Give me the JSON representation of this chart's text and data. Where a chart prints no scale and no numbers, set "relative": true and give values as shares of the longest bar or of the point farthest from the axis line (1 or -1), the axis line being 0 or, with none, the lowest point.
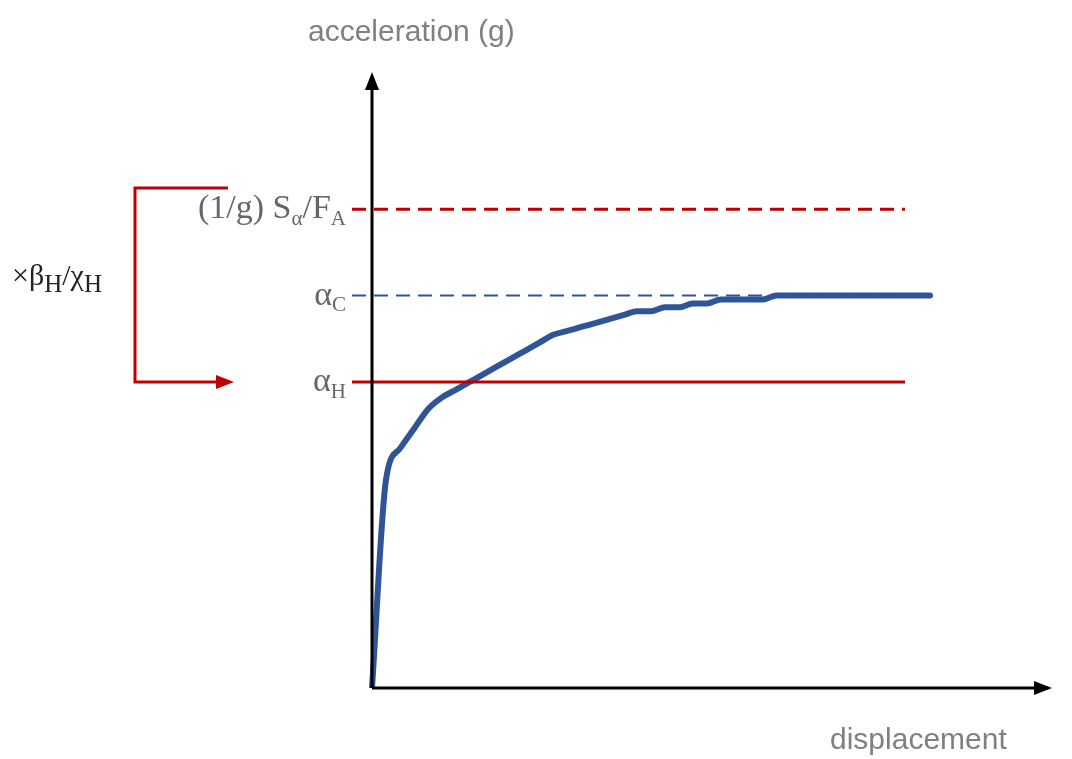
{
  "chart_data": {
    "type": "line",
    "relative": true,
    "xlabel": "displacement",
    "categories": [
      null,
      null,
      null,
      null,
      null,
      null,
      null,
      null,
      null,
      null,
      null,
      null,
      null,
      null,
      null,
      null,
      null,
      null,
      null,
      null,
      null,
      null,
      null,
      null,
      null,
      null,
      null,
      null,
      null,
      null,
      null,
      null,
      null,
      null,
      null,
      null,
      null,
      null,
      null,
      null,
      null
    ],
    "series": [
      {
        "color": "#2f5597",
        "values": [
          0,
          0.53,
          0.61,
          0.66,
          0.71,
          0.74,
          0.76,
          0.78,
          0.8,
          0.82,
          0.84,
          0.86,
          0.88,
          0.9,
          0.91,
          0.92,
          0.93,
          0.94,
          0.95,
          0.96,
          0.96,
          0.97,
          0.97,
          0.98,
          0.98,
          0.99,
          0.99,
          0.99,
          0.99,
          1,
          1,
          1,
          1,
          1,
          1,
          1,
          1,
          1,
          1,
          1,
          1
        ]
      }
    ],
    "ref_lines": [
      {
        "axis": "y",
        "value": 1.22,
        "label": "(1/g) S$_{α}$/F$_{A}$",
        "color": "#c00000",
        "line_style": "dashed"
      },
      {
        "axis": "y",
        "value": 1,
        "label": "α$_{C}$",
        "color": "#2f5597",
        "line_style": "dashed"
      },
      {
        "axis": "y",
        "value": 0.78,
        "label": "α$_{H}$",
        "color": "#c00000",
        "line_style": "solid"
      }
    ],
    "annotations": [
      "×β$_{H}$/χ$_{H}$",
      "acceleration (g)"
    ],
    "grid": false,
    "legend": false,
    "marker": "none",
    "line_style": "solid"
  }
}
